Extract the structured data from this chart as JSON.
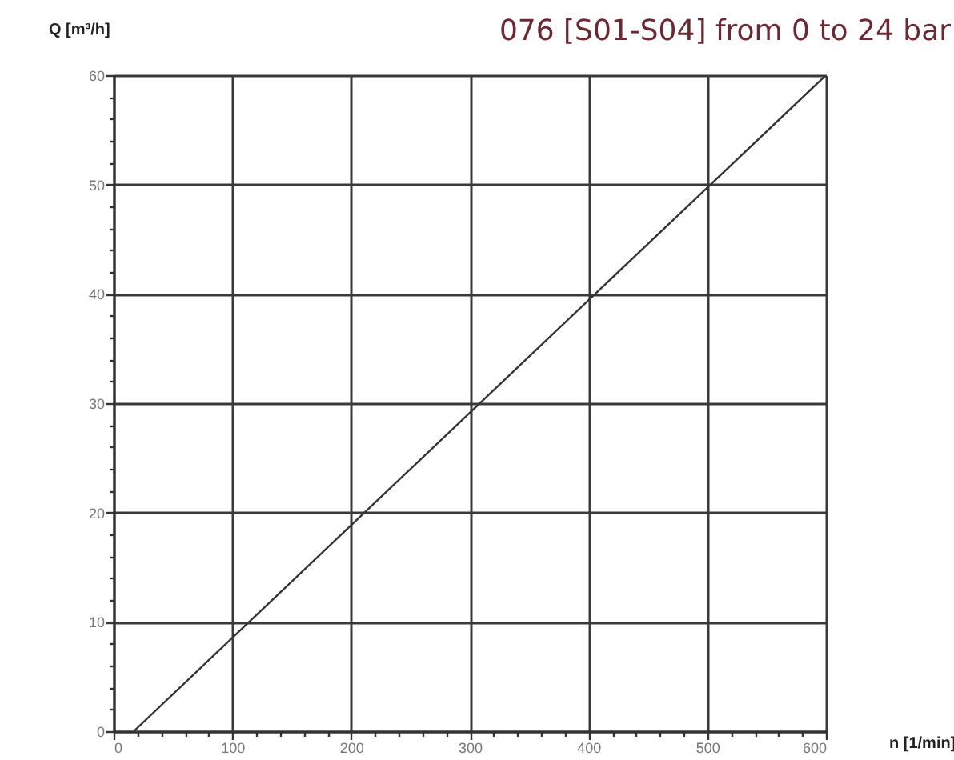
{
  "chart_data": {
    "type": "line",
    "title": "076 [S01-S04]   from 0 to 24 bar",
    "xlabel": "n [1/min]",
    "ylabel": "Q [m³/h]",
    "series": [
      {
        "color": "#333333",
        "x": [
          17,
          600
        ],
        "values": [
          0,
          60
        ]
      }
    ],
    "xlim": [
      0,
      600
    ],
    "ylim": [
      0,
      60
    ],
    "xticks": [
      0,
      {
        "value": 20,
        "label": null
      },
      {
        "value": 40,
        "label": null
      },
      {
        "value": 60,
        "label": null
      },
      {
        "value": 80,
        "label": null
      },
      100,
      {
        "value": 120,
        "label": null
      },
      {
        "value": 140,
        "label": null
      },
      {
        "value": 160,
        "label": null
      },
      {
        "value": 180,
        "label": null
      },
      200,
      {
        "value": 220,
        "label": null
      },
      {
        "value": 240,
        "label": null
      },
      {
        "value": 260,
        "label": null
      },
      {
        "value": 280,
        "label": null
      },
      300,
      {
        "value": 320,
        "label": null
      },
      {
        "value": 340,
        "label": null
      },
      {
        "value": 360,
        "label": null
      },
      {
        "value": 380,
        "label": null
      },
      400,
      {
        "value": 420,
        "label": null
      },
      {
        "value": 440,
        "label": null
      },
      {
        "value": 460,
        "label": null
      },
      {
        "value": 480,
        "label": null
      },
      500,
      {
        "value": 520,
        "label": null
      },
      {
        "value": 540,
        "label": null
      },
      {
        "value": 560,
        "label": null
      },
      {
        "value": 580,
        "label": null
      },
      600
    ],
    "yticks": [
      0,
      {
        "value": 2,
        "label": null
      },
      {
        "value": 4,
        "label": null
      },
      {
        "value": 6,
        "label": null
      },
      {
        "value": 8,
        "label": null
      },
      10,
      {
        "value": 12,
        "label": null
      },
      {
        "value": 14,
        "label": null
      },
      {
        "value": 16,
        "label": null
      },
      {
        "value": 18,
        "label": null
      },
      20,
      {
        "value": 22,
        "label": null
      },
      {
        "value": 24,
        "label": null
      },
      {
        "value": 26,
        "label": null
      },
      {
        "value": 28,
        "label": null
      },
      30,
      {
        "value": 32,
        "label": null
      },
      {
        "value": 34,
        "label": null
      },
      {
        "value": 36,
        "label": null
      },
      {
        "value": 38,
        "label": null
      },
      40,
      {
        "value": 42,
        "label": null
      },
      {
        "value": 44,
        "label": null
      },
      {
        "value": 46,
        "label": null
      },
      {
        "value": 48,
        "label": null
      },
      50,
      {
        "value": 52,
        "label": null
      },
      {
        "value": 54,
        "label": null
      },
      {
        "value": 56,
        "label": null
      },
      {
        "value": 58,
        "label": null
      },
      60
    ],
    "grid": true
  }
}
